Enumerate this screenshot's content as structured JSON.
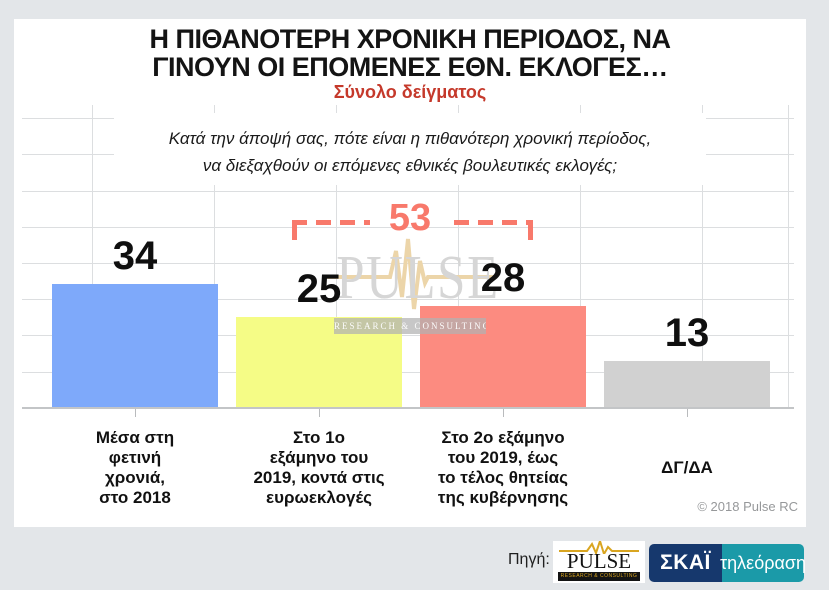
{
  "window": {
    "background": "#e3e6e9",
    "card_background": "#ffffff"
  },
  "header": {
    "title_line1": "Η ΠΙΘΑΝΟΤΕΡΗ ΧΡΟΝΙΚΗ ΠΕΡΙΟΔΟΣ, ΝΑ",
    "title_line2": "ΓΙΝΟΥΝ ΟΙ ΕΠΟΜΕΝΕΣ ΕΘΝ. ΕΚΛΟΓΕΣ…",
    "subtitle": "Σύνολο δείγματος",
    "subtitle_color": "#c5392b"
  },
  "question": {
    "text": "Κατά την άποψή σας, πότε είναι η πιθανότερη χρονική περίοδος,\nνα διεξαχθούν οι επόμενες εθνικές βουλευτικές εκλογές;"
  },
  "chart_data": {
    "type": "bar",
    "title": "Η ΠΙΘΑΝΟΤΕΡΗ ΧΡΟΝΙΚΗ ΠΕΡΙΟΔΟΣ, ΝΑ ΓΙΝΟΥΝ ΟΙ ΕΠΟΜΕΝΕΣ ΕΘΝ. ΕΚΛΟΓΕΣ…",
    "subtitle": "Σύνολο δείγματος",
    "categories": [
      "Μέσα στη\nφετινή\nχρονιά,\nστο 2018",
      "Στο 1ο\nεξάμηνο του\n2019, κοντά στις\nευρωεκλογές",
      "Στο 2ο εξάμηνο\nτου 2019, έως\nτο τέλος θητείας\nτης κυβέρνησης",
      "ΔΓ/ΔΑ"
    ],
    "values": [
      34,
      25,
      28,
      13
    ],
    "bar_colors": [
      "#7ea9fa",
      "#f5fc86",
      "#fc8b80",
      "#d1d1d1"
    ],
    "annotation": {
      "value": 53,
      "from_category": 1,
      "to_category": 2,
      "color": "#f8796b"
    },
    "ylim": [
      0,
      85
    ],
    "gridline_step": 10,
    "grid": true,
    "legend": "none",
    "ylabel": "",
    "xlabel": ""
  },
  "watermark": {
    "name": "PULSE",
    "subtext": "RESEARCH & CONSULTING"
  },
  "copyright": "© 2018 Pulse RC",
  "footer": {
    "source_label": "Πηγή:",
    "pulse_logo": {
      "name": "PULSE",
      "subtext": "RESEARCH & CONSULTING"
    },
    "skai_logo": {
      "name": "ΣΚΑΪ",
      "suffix": "τηλεόραση",
      "navy": "#16386d",
      "teal": "#1b9aa8"
    }
  }
}
